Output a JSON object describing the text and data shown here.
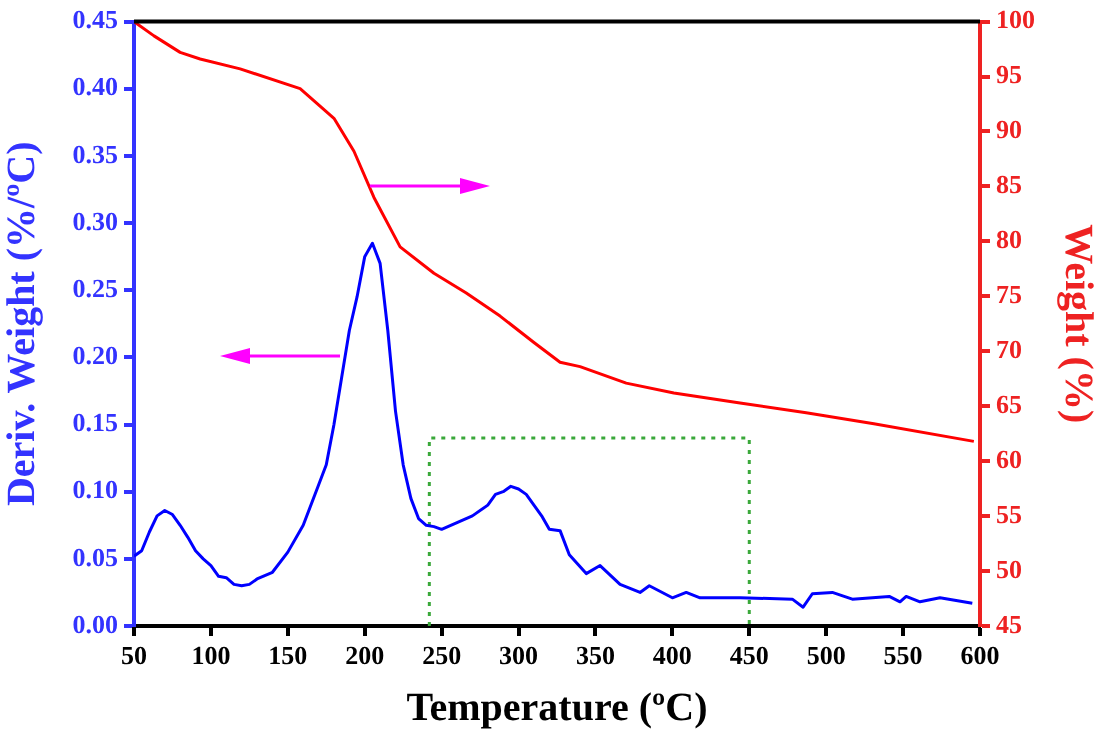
{
  "chart_data": {
    "type": "line",
    "xlabel": "Temperature (ºC)",
    "ylabel": "Deriv. Weight (%/ºC)",
    "y2label": "Weight (%)",
    "xlim": [
      50,
      600
    ],
    "xticks": [
      50,
      100,
      150,
      200,
      250,
      300,
      350,
      400,
      450,
      500,
      550,
      600
    ],
    "ylim": [
      0,
      0.45
    ],
    "yticks": [
      {
        "value": 0,
        "label": "0.00"
      },
      0.05,
      {
        "value": 0.1,
        "label": "0.10"
      },
      0.15,
      {
        "value": 0.2,
        "label": "0.20"
      },
      0.25,
      {
        "value": 0.3,
        "label": "0.30"
      },
      0.35,
      {
        "value": 0.4,
        "label": "0.40"
      },
      0.45
    ],
    "y2lim": [
      45,
      100
    ],
    "y2ticks": [
      45,
      50,
      55,
      60,
      65,
      70,
      75,
      80,
      85,
      90,
      95,
      100
    ],
    "series": [
      {
        "color": "#0000ff",
        "x": [
          50,
          55,
          60,
          65,
          70,
          75,
          80,
          85,
          90,
          95,
          100,
          105,
          110,
          115,
          120,
          125,
          130,
          140,
          150,
          160,
          170,
          175,
          180,
          185,
          190,
          195,
          200,
          205,
          210,
          215,
          220,
          225,
          230,
          235,
          240,
          245,
          250,
          260,
          270,
          280,
          285,
          290,
          295,
          300,
          305,
          310,
          315,
          320,
          327,
          333,
          344,
          353,
          366,
          379,
          385,
          400,
          409,
          418,
          444,
          478,
          485,
          491,
          504,
          517,
          541,
          548,
          552,
          561,
          574,
          595
        ],
        "values": [
          0.052,
          0.056,
          0.07,
          0.082,
          0.086,
          0.083,
          0.075,
          0.066,
          0.056,
          0.05,
          0.045,
          0.037,
          0.036,
          0.031,
          0.03,
          0.031,
          0.035,
          0.04,
          0.055,
          0.075,
          0.105,
          0.12,
          0.15,
          0.185,
          0.22,
          0.245,
          0.275,
          0.285,
          0.27,
          0.22,
          0.16,
          0.12,
          0.095,
          0.08,
          0.075,
          0.074,
          0.072,
          0.077,
          0.082,
          0.09,
          0.098,
          0.1,
          0.104,
          0.102,
          0.098,
          0.09,
          0.082,
          0.072,
          0.071,
          0.053,
          0.039,
          0.045,
          0.031,
          0.025,
          0.03,
          0.021,
          0.025,
          0.021,
          0.021,
          0.02,
          0.014,
          0.024,
          0.025,
          0.02,
          0.022,
          0.018,
          0.022,
          0.018,
          0.021,
          0.017
        ]
      },
      {
        "color": "#3aa83a",
        "line_style": "dotted",
        "x": [
          242,
          242,
          450,
          450
        ],
        "values": [
          0,
          0.14,
          0.14,
          0
        ]
      },
      {
        "color": "#ff0000",
        "axis": "y2",
        "x": [
          50,
          63,
          80,
          93,
          119,
          158,
          180,
          193,
          206,
          223,
          245,
          266,
          288,
          310,
          327,
          340,
          370,
          401,
          444,
          487,
          531,
          596
        ],
        "values": [
          100,
          98.7,
          97.2,
          96.6,
          95.7,
          93.9,
          91.2,
          88.2,
          84.0,
          79.5,
          77.1,
          75.3,
          73.2,
          70.8,
          69.0,
          68.6,
          67.1,
          66.2,
          65.3,
          64.4,
          63.4,
          61.8
        ]
      }
    ]
  }
}
